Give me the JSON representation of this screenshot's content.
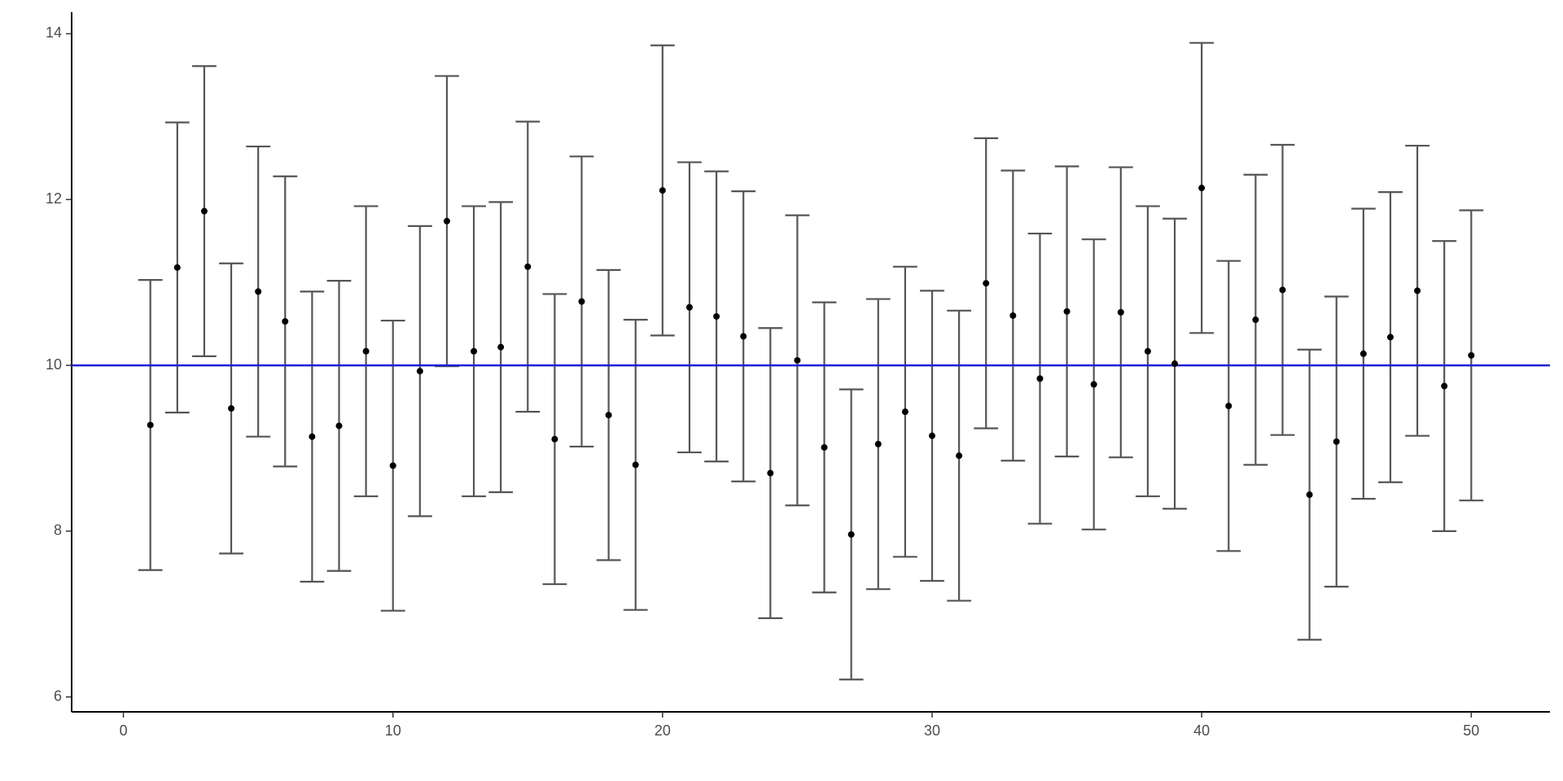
{
  "chart_data": {
    "type": "errorbar",
    "x": [
      1,
      2,
      3,
      4,
      5,
      6,
      7,
      8,
      9,
      10,
      11,
      12,
      13,
      14,
      15,
      16,
      17,
      18,
      19,
      20,
      21,
      22,
      23,
      24,
      25,
      26,
      27,
      28,
      29,
      30,
      31,
      32,
      33,
      34,
      35,
      36,
      37,
      38,
      39,
      40,
      41,
      42,
      43,
      44,
      45,
      46,
      47,
      48,
      49,
      50
    ],
    "values": [
      9.28,
      11.18,
      11.86,
      9.48,
      10.89,
      10.53,
      9.14,
      9.27,
      10.17,
      8.79,
      9.93,
      11.74,
      10.17,
      10.22,
      11.19,
      9.11,
      10.77,
      9.4,
      8.8,
      12.11,
      10.7,
      10.59,
      10.35,
      8.7,
      10.06,
      9.01,
      7.96,
      9.05,
      9.44,
      9.15,
      8.91,
      10.99,
      10.6,
      9.84,
      10.65,
      9.77,
      10.64,
      10.17,
      10.02,
      12.14,
      9.51,
      10.55,
      10.91,
      8.44,
      9.08,
      10.14,
      10.34,
      10.9,
      9.75,
      10.12
    ],
    "errors": [
      1.75,
      1.75,
      1.75,
      1.75,
      1.75,
      1.75,
      1.75,
      1.75,
      1.75,
      1.75,
      1.75,
      1.75,
      1.75,
      1.75,
      1.75,
      1.75,
      1.75,
      1.75,
      1.75,
      1.75,
      1.75,
      1.75,
      1.75,
      1.75,
      1.75,
      1.75,
      1.75,
      1.75,
      1.75,
      1.75,
      1.75,
      1.75,
      1.75,
      1.75,
      1.75,
      1.75,
      1.75,
      1.75,
      1.75,
      1.75,
      1.75,
      1.75,
      1.75,
      1.75,
      1.75,
      1.75,
      1.75,
      1.75,
      1.75,
      1.75
    ],
    "color": "#000000",
    "errorbar_color": "#555555",
    "hline": 10,
    "hline_color": "#1f1fd6",
    "xlim": [
      -1.92,
      52.92
    ],
    "ylim": [
      5.82,
      14.26
    ],
    "xticks": [
      0,
      10,
      20,
      30,
      40,
      50
    ],
    "yticks": [
      6,
      8,
      10,
      12,
      14
    ]
  }
}
